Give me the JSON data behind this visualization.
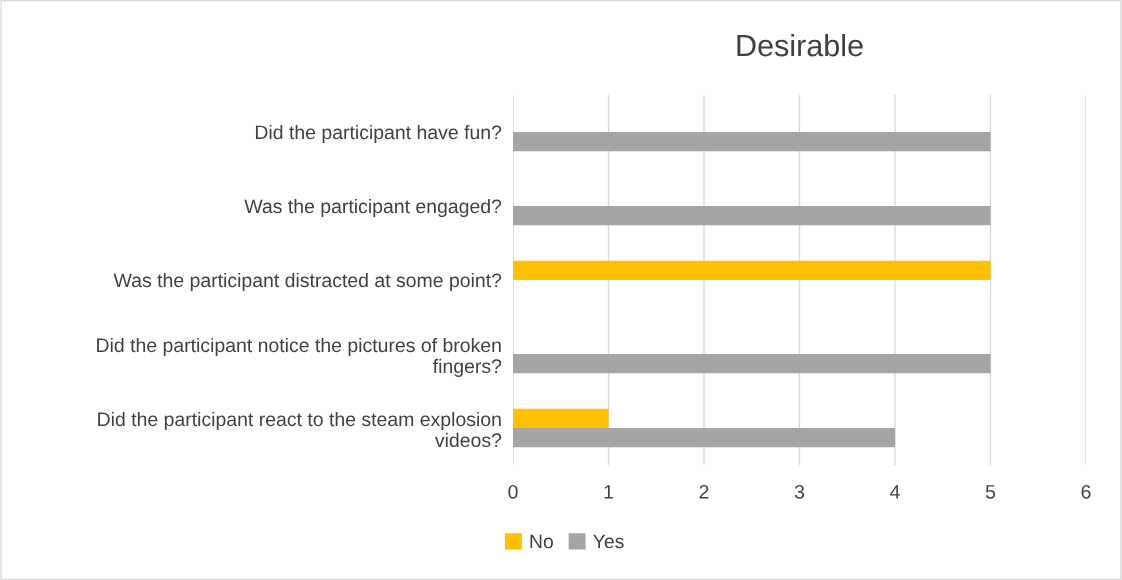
{
  "chart_data": {
    "type": "bar",
    "orientation": "horizontal",
    "title": "Desirable",
    "categories": [
      "Did the participant have fun?",
      "Was the participant engaged?",
      "Was the participant distracted at some point?",
      "Did the participant notice the pictures of broken\nfingers?",
      "Did the participant react to the steam explosion\nvideos?"
    ],
    "series": [
      {
        "name": "No",
        "color": "#ffc000",
        "values": [
          0,
          0,
          5,
          0,
          1
        ]
      },
      {
        "name": "Yes",
        "color": "#a5a5a5",
        "values": [
          5,
          5,
          0,
          5,
          4
        ]
      }
    ],
    "xlim": [
      0,
      6
    ],
    "xticks": [
      0,
      1,
      2,
      3,
      4,
      5,
      6
    ],
    "grid": "x",
    "legend": "bottom"
  }
}
